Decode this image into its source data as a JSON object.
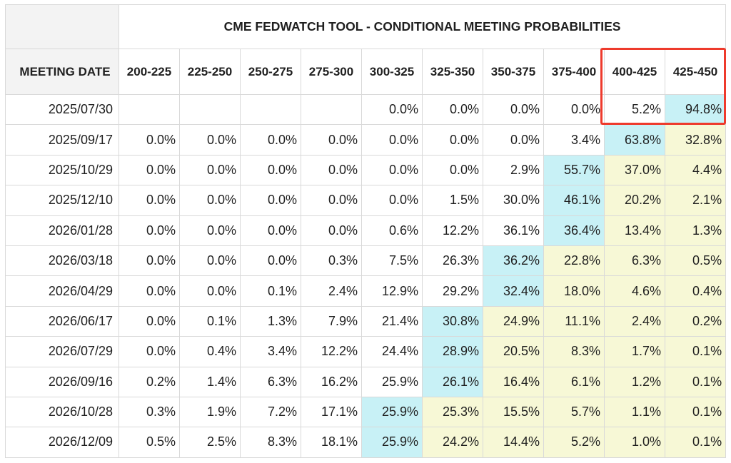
{
  "title": "CME FEDWATCH TOOL - CONDITIONAL MEETING PROBABILITIES",
  "date_header": "MEETING DATE",
  "columns": [
    "200-225",
    "225-250",
    "250-275",
    "275-300",
    "300-325",
    "325-350",
    "350-375",
    "375-400",
    "400-425",
    "425-450"
  ],
  "highlight_color": "#ee3a2c",
  "cell_colors": {
    "mode": "#c8f1f6",
    "above_mode": "#f7f8d6",
    "other": "#ffffff"
  },
  "rows": [
    {
      "date": "2025/07/30",
      "values": [
        "",
        "",
        "",
        "",
        "0.0%",
        "0.0%",
        "0.0%",
        "0.0%",
        "5.2%",
        "94.8%"
      ]
    },
    {
      "date": "2025/09/17",
      "values": [
        "0.0%",
        "0.0%",
        "0.0%",
        "0.0%",
        "0.0%",
        "0.0%",
        "0.0%",
        "3.4%",
        "63.8%",
        "32.8%"
      ]
    },
    {
      "date": "2025/10/29",
      "values": [
        "0.0%",
        "0.0%",
        "0.0%",
        "0.0%",
        "0.0%",
        "0.0%",
        "2.9%",
        "55.7%",
        "37.0%",
        "4.4%"
      ]
    },
    {
      "date": "2025/12/10",
      "values": [
        "0.0%",
        "0.0%",
        "0.0%",
        "0.0%",
        "0.0%",
        "1.5%",
        "30.0%",
        "46.1%",
        "20.2%",
        "2.1%"
      ]
    },
    {
      "date": "2026/01/28",
      "values": [
        "0.0%",
        "0.0%",
        "0.0%",
        "0.0%",
        "0.6%",
        "12.2%",
        "36.1%",
        "36.4%",
        "13.4%",
        "1.3%"
      ]
    },
    {
      "date": "2026/03/18",
      "values": [
        "0.0%",
        "0.0%",
        "0.0%",
        "0.3%",
        "7.5%",
        "26.3%",
        "36.2%",
        "22.8%",
        "6.3%",
        "0.5%"
      ]
    },
    {
      "date": "2026/04/29",
      "values": [
        "0.0%",
        "0.0%",
        "0.1%",
        "2.4%",
        "12.9%",
        "29.2%",
        "32.4%",
        "18.0%",
        "4.6%",
        "0.4%"
      ]
    },
    {
      "date": "2026/06/17",
      "values": [
        "0.0%",
        "0.1%",
        "1.3%",
        "7.9%",
        "21.4%",
        "30.8%",
        "24.9%",
        "11.1%",
        "2.4%",
        "0.2%"
      ]
    },
    {
      "date": "2026/07/29",
      "values": [
        "0.0%",
        "0.4%",
        "3.4%",
        "12.2%",
        "24.4%",
        "28.9%",
        "20.5%",
        "8.3%",
        "1.7%",
        "0.1%"
      ]
    },
    {
      "date": "2026/09/16",
      "values": [
        "0.2%",
        "1.4%",
        "6.3%",
        "16.2%",
        "25.9%",
        "26.1%",
        "16.4%",
        "6.1%",
        "1.2%",
        "0.1%"
      ]
    },
    {
      "date": "2026/10/28",
      "values": [
        "0.3%",
        "1.9%",
        "7.2%",
        "17.1%",
        "25.9%",
        "25.3%",
        "15.5%",
        "5.7%",
        "1.1%",
        "0.1%"
      ]
    },
    {
      "date": "2026/12/09",
      "values": [
        "0.5%",
        "2.5%",
        "8.3%",
        "18.1%",
        "25.9%",
        "24.2%",
        "14.4%",
        "5.2%",
        "1.0%",
        "0.1%"
      ]
    }
  ],
  "mode_columns": [
    9,
    8,
    7,
    7,
    7,
    6,
    6,
    5,
    5,
    5,
    4,
    4
  ]
}
